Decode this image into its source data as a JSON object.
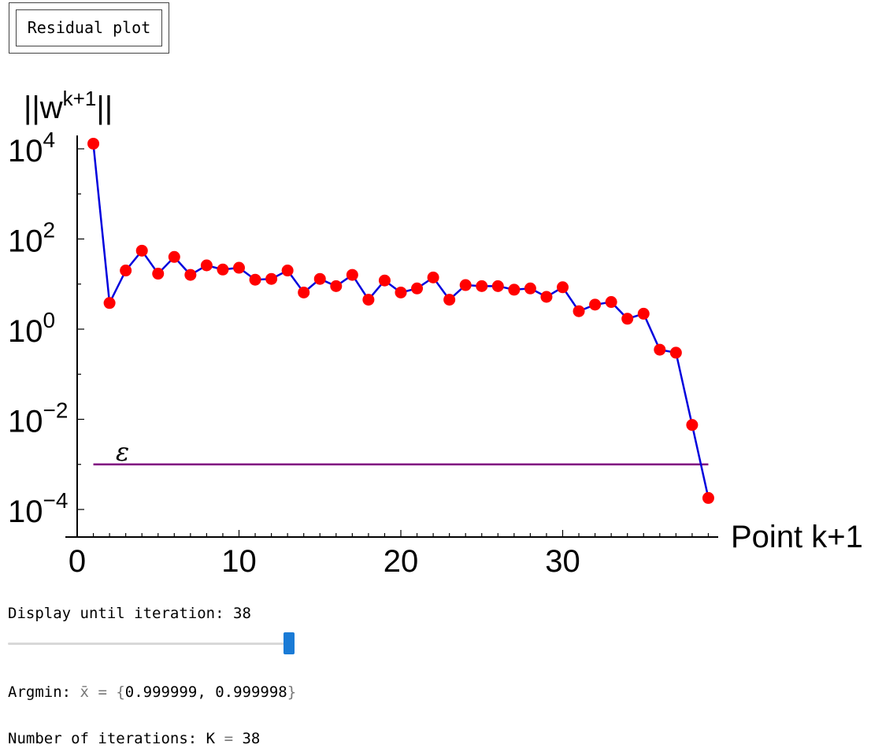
{
  "button": {
    "label": "Residual plot"
  },
  "chart_data": {
    "type": "line",
    "markers": true,
    "ylabel_base": "||w",
    "ylabel_sup": "k+1",
    "ylabel_end": "||",
    "xlabel": "Point k+1",
    "yscale": "log",
    "xlim": [
      0,
      39.5
    ],
    "ylim_exponent": [
      -4.7,
      4.3
    ],
    "x_ticks": [
      0,
      10,
      20,
      30
    ],
    "y_tick_exponents": [
      4,
      2,
      0,
      -2,
      -4
    ],
    "y_tick_base": "10",
    "x": [
      1,
      2,
      3,
      4,
      5,
      6,
      7,
      8,
      9,
      10,
      11,
      12,
      13,
      14,
      15,
      16,
      17,
      18,
      19,
      20,
      21,
      22,
      23,
      24,
      25,
      26,
      27,
      28,
      29,
      30,
      31,
      32,
      33,
      34,
      35,
      36,
      37,
      38,
      39
    ],
    "y": [
      13000,
      3.8,
      20,
      55,
      17,
      40,
      16,
      26,
      21,
      23,
      12.5,
      13,
      20,
      6.5,
      13,
      9,
      16,
      4.5,
      12,
      6.5,
      8,
      14,
      4.5,
      9.5,
      9,
      9,
      7.5,
      8,
      5.2,
      8.5,
      2.5,
      3.5,
      4,
      1.7,
      2.2,
      0.35,
      0.3,
      0.0075,
      0.00018
    ],
    "threshold": {
      "label": "ε",
      "value": 0.001,
      "x_range": [
        1,
        39
      ]
    },
    "colors": {
      "line": "#0000dd",
      "marker": "#ff0000",
      "threshold": "#800080",
      "axis": "#000000"
    }
  },
  "slider": {
    "label": "Display until iteration:",
    "value": 38,
    "min": 1,
    "max": 38
  },
  "argmin": {
    "label": "Argmin:",
    "symbol": "x̄",
    "equals": "=",
    "open": "{",
    "v1": "0.999999",
    "comma": ",",
    "v2": "0.999998",
    "close": "}"
  },
  "iterations": {
    "label": "Number of iterations: K",
    "equals": "=",
    "value": "38"
  }
}
